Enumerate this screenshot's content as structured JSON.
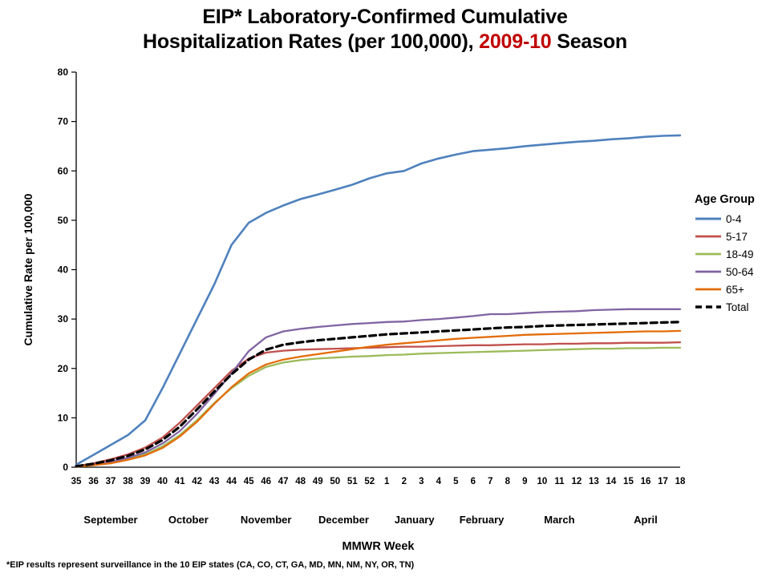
{
  "header": {
    "title_line1": "EIP* Laboratory-Confirmed Cumulative",
    "title_line2_pre": "Hospitalization Rates (per 100,000), ",
    "title_line2_highlight": "2009-10",
    "title_line2_post": " Season",
    "highlight_color": "#C00000"
  },
  "footnote": "*EIP results represent surveillance in the 10 EIP states (CA, CO, CT, GA, MD, MN, NM, NY, OR, TN)",
  "chart_data": {
    "type": "line",
    "title": "EIP* Laboratory-Confirmed Cumulative Hospitalization Rates (per 100,000), 2009-10 Season",
    "xlabel": "MMWR Week",
    "ylabel": "Cumulative Rate per 100,000",
    "ylim": [
      0,
      80
    ],
    "yticks": [
      0,
      10,
      20,
      30,
      40,
      50,
      60,
      70,
      80
    ],
    "grid": false,
    "legend_title": "Age Group",
    "legend_position": "right",
    "x_week_labels": [
      "35",
      "36",
      "37",
      "38",
      "39",
      "40",
      "41",
      "42",
      "43",
      "44",
      "45",
      "46",
      "47",
      "48",
      "49",
      "50",
      "51",
      "52",
      "1",
      "2",
      "3",
      "4",
      "5",
      "6",
      "7",
      "8",
      "9",
      "10",
      "11",
      "12",
      "13",
      "14",
      "15",
      "16",
      "17",
      "18"
    ],
    "month_labels": [
      {
        "label": "September",
        "pos": 2.0
      },
      {
        "label": "October",
        "pos": 6.5
      },
      {
        "label": "November",
        "pos": 11.0
      },
      {
        "label": "December",
        "pos": 15.5
      },
      {
        "label": "January",
        "pos": 19.6
      },
      {
        "label": "February",
        "pos": 23.5
      },
      {
        "label": "March",
        "pos": 28.0
      },
      {
        "label": "April",
        "pos": 33.0
      }
    ],
    "series": [
      {
        "name": "0-4",
        "color": "#4F81BD",
        "dash": null,
        "width": 2.6,
        "values": [
          0.5,
          2.5,
          4.5,
          6.5,
          9.5,
          16,
          23,
          30,
          37,
          45,
          49.5,
          51.5,
          53,
          54.3,
          55.2,
          56.2,
          57.2,
          58.5,
          59.5,
          60,
          61.5,
          62.5,
          63.3,
          64,
          64.3,
          64.6,
          65,
          65.3,
          65.6,
          65.9,
          66.1,
          66.4,
          66.6,
          66.9,
          67.1,
          67.2
        ]
      },
      {
        "name": "5-17",
        "color": "#C0504D",
        "dash": null,
        "width": 2.3,
        "values": [
          0.2,
          0.8,
          1.6,
          2.6,
          4,
          6,
          9,
          12.5,
          16,
          19.5,
          22,
          23.2,
          23.6,
          23.8,
          23.9,
          24,
          24.1,
          24.2,
          24.3,
          24.4,
          24.4,
          24.5,
          24.6,
          24.7,
          24.7,
          24.8,
          24.9,
          24.9,
          25,
          25,
          25.1,
          25.1,
          25.2,
          25.2,
          25.2,
          25.3
        ]
      },
      {
        "name": "18-49",
        "color": "#9BBB59",
        "dash": null,
        "width": 2.3,
        "values": [
          0.1,
          0.4,
          0.9,
          1.6,
          2.6,
          4.2,
          6.5,
          9.5,
          13,
          16,
          18.5,
          20.3,
          21.2,
          21.7,
          22,
          22.2,
          22.4,
          22.5,
          22.7,
          22.8,
          23,
          23.1,
          23.2,
          23.3,
          23.4,
          23.5,
          23.6,
          23.7,
          23.8,
          23.9,
          24,
          24,
          24.1,
          24.1,
          24.2,
          24.2
        ]
      },
      {
        "name": "50-64",
        "color": "#8064A2",
        "dash": null,
        "width": 2.3,
        "values": [
          0.1,
          0.5,
          1.1,
          1.9,
          3,
          4.8,
          7.3,
          10.8,
          14.8,
          19,
          23.5,
          26.3,
          27.5,
          28,
          28.4,
          28.7,
          29,
          29.2,
          29.4,
          29.5,
          29.8,
          30,
          30.3,
          30.6,
          31,
          31,
          31.2,
          31.4,
          31.5,
          31.6,
          31.8,
          31.9,
          32,
          32,
          32,
          32
        ]
      },
      {
        "name": "65+",
        "color": "#E36C09",
        "dash": null,
        "width": 2.3,
        "values": [
          0.1,
          0.4,
          0.8,
          1.5,
          2.4,
          3.9,
          6.2,
          9.2,
          12.8,
          16.2,
          19,
          20.8,
          21.8,
          22.4,
          22.9,
          23.4,
          23.9,
          24.4,
          24.8,
          25.1,
          25.4,
          25.7,
          26,
          26.2,
          26.4,
          26.6,
          26.8,
          26.9,
          27,
          27.1,
          27.2,
          27.3,
          27.4,
          27.5,
          27.5,
          27.6
        ]
      },
      {
        "name": "Total",
        "color": "#000000",
        "dash": "8 5",
        "width": 3.2,
        "values": [
          0.2,
          0.7,
          1.4,
          2.3,
          3.6,
          5.5,
          8.2,
          11.7,
          15.3,
          18.8,
          21.8,
          23.8,
          24.8,
          25.3,
          25.7,
          26,
          26.3,
          26.6,
          26.9,
          27.1,
          27.3,
          27.5,
          27.7,
          27.9,
          28.1,
          28.3,
          28.4,
          28.6,
          28.7,
          28.8,
          28.9,
          29,
          29.1,
          29.2,
          29.3,
          29.4
        ]
      }
    ]
  }
}
